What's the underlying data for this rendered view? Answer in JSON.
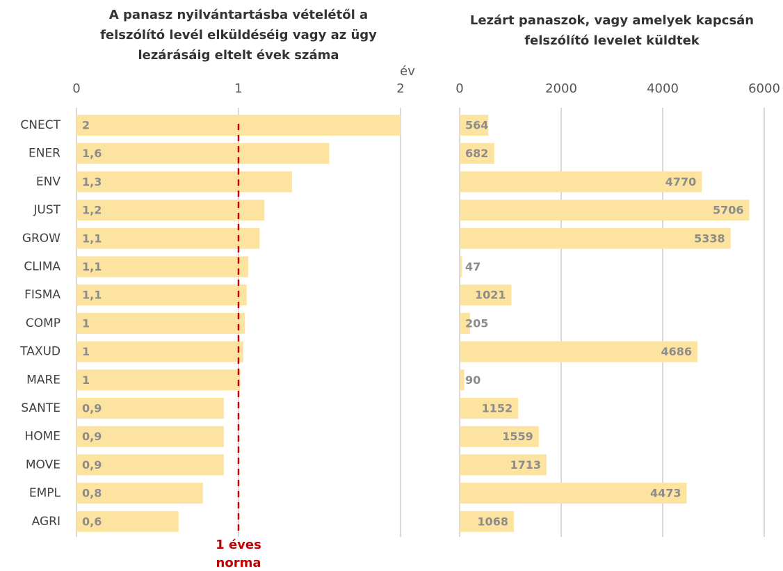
{
  "chart_data": [
    {
      "type": "bar",
      "orientation": "horizontal",
      "title": [
        "A panasz nyilvántartásba vételétől a",
        "felszólító levél elküldéséig vagy az ügy",
        "lezárásáig eltelt évek száma"
      ],
      "x_label": "év",
      "categories": [
        "CNECT",
        "ENER",
        "ENV",
        "JUST",
        "GROW",
        "CLIMA",
        "FISMA",
        "COMP",
        "TAXUD",
        "MARE",
        "SANTE",
        "HOME",
        "MOVE",
        "EMPL",
        "AGRI"
      ],
      "values": [
        2,
        1.56,
        1.33,
        1.16,
        1.13,
        1.06,
        1.05,
        1.04,
        1.03,
        1.01,
        0.91,
        0.91,
        0.91,
        0.78,
        0.63
      ],
      "value_labels": [
        "2",
        "1,6",
        "1,3",
        "1,2",
        "1,1",
        "1,1",
        "1,1",
        "1",
        "1",
        "1",
        "0,9",
        "0,9",
        "0,9",
        "0,8",
        "0,6"
      ],
      "color": "#fde3a0",
      "xlim": [
        0,
        2
      ],
      "xticks": [
        0,
        1,
        2
      ],
      "grid": true,
      "reference_line": {
        "value": 1,
        "label": [
          "1 éves",
          "norma"
        ],
        "color": "#c00000"
      }
    },
    {
      "type": "bar",
      "orientation": "horizontal",
      "title": [
        "Lezárt panaszok, vagy amelyek kapcsán",
        "felszólító levelet küldtek"
      ],
      "values": [
        564,
        682,
        4770,
        5706,
        5338,
        47,
        1021,
        205,
        4686,
        90,
        1152,
        1559,
        1713,
        4473,
        1068
      ],
      "color": "#fde3a0",
      "xlim": [
        0,
        6000
      ],
      "xticks": [
        0,
        2000,
        4000,
        6000
      ],
      "grid": true
    }
  ]
}
